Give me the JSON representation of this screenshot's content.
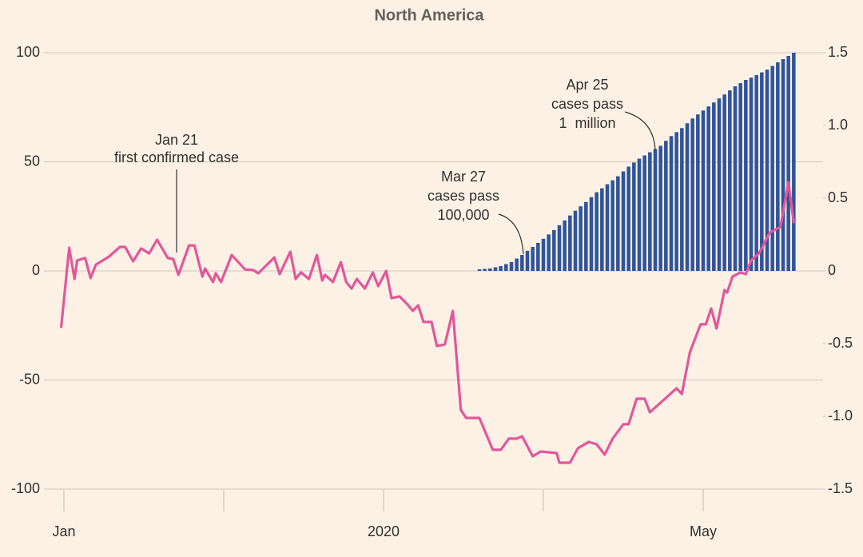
{
  "chart_data": {
    "type": "combo",
    "title": "North America",
    "series": [
      {
        "type": "line",
        "color": "#e2579a",
        "x": [
          -1,
          2,
          4,
          5,
          8,
          10,
          12,
          17,
          21,
          23,
          26,
          29,
          32,
          35,
          39,
          41,
          43,
          47,
          49,
          52,
          53,
          56,
          57,
          59,
          63,
          68,
          71,
          73,
          79,
          81,
          85,
          87,
          89,
          92,
          95,
          97,
          98,
          101,
          104,
          106,
          108,
          110,
          113,
          116,
          118,
          121,
          123,
          126,
          129,
          131,
          133,
          135,
          138,
          140,
          143,
          146,
          149,
          151,
          156,
          161,
          164,
          167,
          170,
          172,
          176,
          179,
          185,
          186,
          190,
          193,
          197,
          200,
          203,
          206,
          210,
          212,
          215,
          218,
          220,
          225,
          230,
          232,
          235,
          239,
          241,
          243,
          245,
          248,
          249,
          251,
          254,
          256,
          258,
          261,
          265,
          269,
          272,
          274
        ],
        "values": [
          -25.6,
          10.6,
          -3.7,
          4.8,
          5.9,
          -3.3,
          2.9,
          6.6,
          11,
          11,
          4.4,
          10.3,
          8,
          14.3,
          5.9,
          5.5,
          -1.8,
          11.7,
          11.7,
          -2.6,
          1.1,
          -5.1,
          -1.1,
          -5.1,
          7.3,
          0.7,
          0.4,
          -1.1,
          6.2,
          -1.5,
          8.8,
          -3.7,
          -0.7,
          -3.7,
          7.3,
          -4.4,
          -1.8,
          -5.1,
          4,
          -5.1,
          -8.1,
          -3.7,
          -8.1,
          -0.7,
          -7,
          0,
          -12.5,
          -11.7,
          -15.4,
          -18.3,
          -15.8,
          -23.4,
          -23.4,
          -34.4,
          -33.7,
          -18.3,
          -63.7,
          -67.4,
          -67.4,
          -82,
          -82,
          -76.9,
          -76.9,
          -75.8,
          -85,
          -82.8,
          -83.5,
          -87.9,
          -87.9,
          -81.3,
          -78.4,
          -79.5,
          -84.2,
          -76.9,
          -70.3,
          -70.3,
          -58.6,
          -58.6,
          -64.8,
          -59.3,
          -53.8,
          -56.4,
          -37.4,
          -24.5,
          -24.5,
          -17.2,
          -26.4,
          -8.8,
          -9.9,
          -2.6,
          -0.7,
          -1.5,
          4.8,
          8.1,
          17.6,
          20.1,
          40.7,
          22.3
        ]
      },
      {
        "type": "bar",
        "axis": "y2",
        "color": "#2f5597",
        "x": [
          156,
          158,
          160,
          162,
          164,
          166,
          168,
          170,
          172,
          174,
          176,
          178,
          180,
          182,
          184,
          186,
          188,
          190,
          192,
          194,
          196,
          198,
          200,
          202,
          204,
          206,
          208,
          210,
          212,
          214,
          216,
          218,
          220,
          222,
          224,
          226,
          228,
          230,
          232,
          234,
          236,
          238,
          240,
          242,
          244,
          246,
          248,
          250,
          252,
          254,
          256,
          258,
          260,
          262,
          264,
          266,
          268,
          270,
          272,
          274
        ],
        "values": [
          0.011,
          0.014,
          0.017,
          0.025,
          0.033,
          0.047,
          0.061,
          0.085,
          0.11,
          0.138,
          0.165,
          0.193,
          0.221,
          0.251,
          0.281,
          0.314,
          0.347,
          0.381,
          0.414,
          0.444,
          0.474,
          0.507,
          0.541,
          0.568,
          0.596,
          0.623,
          0.651,
          0.684,
          0.717,
          0.745,
          0.772,
          0.794,
          0.816,
          0.838,
          0.86,
          0.894,
          0.927,
          0.954,
          0.982,
          1.015,
          1.048,
          1.076,
          1.103,
          1.131,
          1.158,
          1.186,
          1.213,
          1.241,
          1.269,
          1.291,
          1.313,
          1.329,
          1.346,
          1.365,
          1.384,
          1.409,
          1.434,
          1.456,
          1.478,
          1.5
        ]
      }
    ],
    "xlim": [
      -8,
      285
    ],
    "xticks": [
      {
        "value": 0,
        "label": "Jan"
      },
      {
        "value": 120,
        "label": "2020"
      },
      {
        "value": 240,
        "label": "May"
      }
    ],
    "xminorticks": [
      60,
      180
    ],
    "ylim": [
      -100,
      100
    ],
    "yticks": [
      100,
      50,
      0,
      -50,
      -100
    ],
    "y2lim": [
      -1.5,
      1.5
    ],
    "y2ticks": [
      1.5,
      {
        "value": 1,
        "label": "1.0"
      },
      0.5,
      0,
      -0.5,
      {
        "value": -1,
        "label": "-1.0"
      },
      -1.5
    ],
    "grid": true,
    "annotations": [
      {
        "lines": [
          "Jan 21",
          "first confirmed case"
        ]
      },
      {
        "lines": [
          "Mar 27",
          "cases pass",
          "100,000"
        ]
      },
      {
        "lines": [
          "Apr 25",
          "cases pass",
          "1  million"
        ]
      }
    ]
  }
}
